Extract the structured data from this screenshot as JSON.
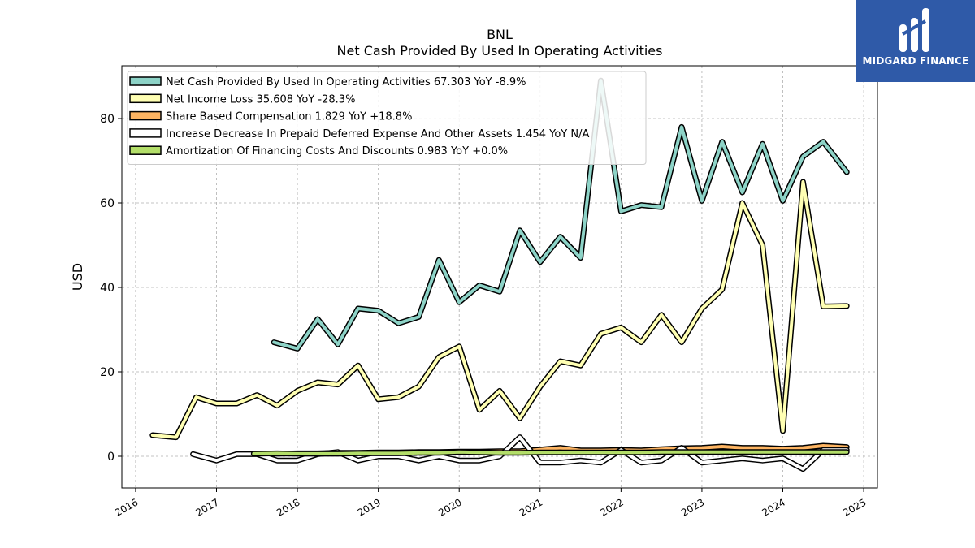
{
  "brand": {
    "name": "MIDGARD FINANCE"
  },
  "chart_data": {
    "type": "line",
    "title": "BNL",
    "subtitle": "Net Cash Provided By Used In Operating Activities",
    "ylabel": "USD",
    "xlabel": "",
    "ylim": [
      -7.5,
      92.5
    ],
    "xlim": [
      2015.83,
      2025.17
    ],
    "yticks": [
      0,
      20,
      40,
      60,
      80
    ],
    "xticks": [
      "2016",
      "2017",
      "2018",
      "2019",
      "2020",
      "2021",
      "2022",
      "2023",
      "2024",
      "2025"
    ],
    "grid": true,
    "legend_position": "top-left",
    "series": [
      {
        "name": "Net Cash Provided By Used In Operating Activities  67.303 YoY -8.9%",
        "color": "#8dd3c7",
        "x": [
          2017.71,
          2018.0,
          2018.25,
          2018.5,
          2018.75,
          2019.0,
          2019.25,
          2019.5,
          2019.75,
          2020.0,
          2020.25,
          2020.5,
          2020.75,
          2021.0,
          2021.25,
          2021.5,
          2021.75,
          2022.0,
          2022.25,
          2022.5,
          2022.75,
          2023.0,
          2023.25,
          2023.5,
          2023.75,
          2024.0,
          2024.25,
          2024.5,
          2024.79
        ],
        "y": [
          27.0,
          25.5,
          32.5,
          26.5,
          35.0,
          34.5,
          31.5,
          33.0,
          46.5,
          36.5,
          40.5,
          39.0,
          53.5,
          46.0,
          52.0,
          47.0,
          89.0,
          58.0,
          59.5,
          59.0,
          78.0,
          60.5,
          74.5,
          62.5,
          74.0,
          60.5,
          71.0,
          74.5,
          67.3
        ]
      },
      {
        "name": "Net Income Loss  35.608 YoY -28.3%",
        "color": "#ffffb3",
        "x": [
          2016.21,
          2016.5,
          2016.75,
          2017.0,
          2017.25,
          2017.5,
          2017.75,
          2018.0,
          2018.25,
          2018.5,
          2018.75,
          2019.0,
          2019.25,
          2019.5,
          2019.75,
          2020.0,
          2020.25,
          2020.5,
          2020.75,
          2021.0,
          2021.25,
          2021.5,
          2021.75,
          2022.0,
          2022.25,
          2022.5,
          2022.75,
          2023.0,
          2023.25,
          2023.5,
          2023.75,
          2024.0,
          2024.25,
          2024.5,
          2024.79
        ],
        "y": [
          5.0,
          4.5,
          14.0,
          12.5,
          12.5,
          14.5,
          12.0,
          15.5,
          17.5,
          17.0,
          21.5,
          13.5,
          14.0,
          16.5,
          23.5,
          26.0,
          11.0,
          15.5,
          9.0,
          16.5,
          22.5,
          21.5,
          29.0,
          30.5,
          27.0,
          33.5,
          27.0,
          35.0,
          39.5,
          60.0,
          50.0,
          6.0,
          65.0,
          35.5,
          35.6
        ]
      },
      {
        "name": "Share Based Compensation  1.829 YoY +18.8%",
        "color": "#fdb462",
        "x": [
          2017.46,
          2017.75,
          2018.0,
          2018.25,
          2018.5,
          2018.75,
          2019.0,
          2019.25,
          2019.5,
          2019.75,
          2020.0,
          2020.25,
          2020.5,
          2020.75,
          2021.0,
          2021.25,
          2021.5,
          2021.75,
          2022.0,
          2022.25,
          2022.5,
          2022.75,
          2023.0,
          2023.25,
          2023.5,
          2023.75,
          2024.0,
          2024.25,
          2024.5,
          2024.79
        ],
        "y": [
          0.6,
          0.6,
          0.7,
          0.7,
          0.8,
          0.8,
          0.9,
          0.9,
          1.0,
          1.0,
          1.1,
          1.1,
          1.2,
          1.2,
          1.6,
          2.0,
          1.4,
          1.4,
          1.5,
          1.4,
          1.7,
          1.9,
          2.0,
          2.3,
          2.0,
          2.0,
          1.8,
          2.0,
          2.5,
          2.2
        ]
      },
      {
        "name": "Increase Decrease In Prepaid Deferred Expense And Other Assets  1.454 YoY N/A",
        "color": "#ffffff",
        "x": [
          2016.71,
          2017.0,
          2017.25,
          2017.5,
          2017.75,
          2018.0,
          2018.25,
          2018.5,
          2018.75,
          2019.0,
          2019.25,
          2019.5,
          2019.75,
          2020.0,
          2020.25,
          2020.5,
          2020.75,
          2021.0,
          2021.25,
          2021.5,
          2021.75,
          2022.0,
          2022.25,
          2022.5,
          2022.75,
          2023.0,
          2023.25,
          2023.5,
          2023.75,
          2024.0,
          2024.25,
          2024.5,
          2024.79
        ],
        "y": [
          0.5,
          -1.0,
          0.5,
          0.5,
          -1.0,
          -1.0,
          0.5,
          1.0,
          -1.0,
          0.0,
          0.0,
          -1.0,
          0.0,
          -1.0,
          -1.0,
          0.0,
          4.5,
          -1.5,
          -1.5,
          -1.0,
          -1.5,
          1.5,
          -1.5,
          -1.0,
          2.0,
          -1.5,
          -1.0,
          -0.5,
          -1.0,
          -0.5,
          -3.0,
          1.5,
          1.5
        ]
      },
      {
        "name": "Amortization Of Financing Costs And Discounts  0.983 YoY +0.0%",
        "color": "#b3de69",
        "x": [
          2017.46,
          2017.75,
          2018.0,
          2018.25,
          2018.5,
          2018.75,
          2019.0,
          2019.25,
          2019.5,
          2019.75,
          2020.0,
          2020.25,
          2020.5,
          2020.75,
          2021.0,
          2021.25,
          2021.5,
          2021.75,
          2022.0,
          2022.25,
          2022.5,
          2022.75,
          2023.0,
          2023.25,
          2023.5,
          2023.75,
          2024.0,
          2024.25,
          2024.5,
          2024.79
        ],
        "y": [
          0.6,
          0.7,
          0.6,
          0.6,
          0.6,
          0.7,
          0.7,
          0.7,
          0.8,
          0.8,
          1.0,
          0.9,
          0.8,
          0.8,
          0.9,
          0.9,
          0.9,
          0.9,
          0.9,
          0.9,
          1.0,
          1.0,
          1.0,
          1.0,
          1.0,
          1.0,
          1.0,
          1.0,
          1.0,
          1.0
        ]
      }
    ]
  }
}
